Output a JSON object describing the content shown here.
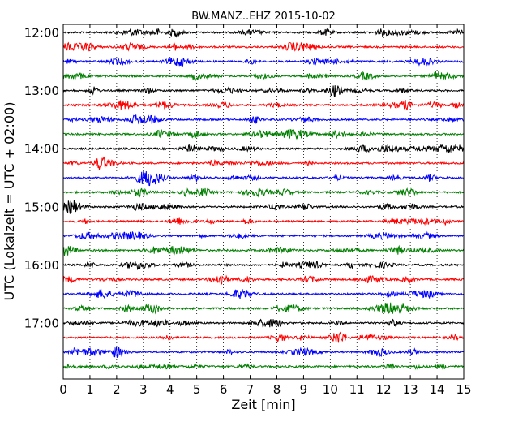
{
  "chart_data": {
    "type": "line",
    "title": "BW.MANZ..EHZ 2015-10-02",
    "xlabel": "Zeit  [min]",
    "ylabel": "UTC (Lokalzeit = UTC + 02:00)",
    "xlim": [
      0,
      15
    ],
    "x_ticks": [
      "0",
      "1",
      "2",
      "3",
      "4",
      "5",
      "6",
      "7",
      "8",
      "9",
      "10",
      "11",
      "12",
      "13",
      "14",
      "15"
    ],
    "y_ticks": [
      "12:00",
      "13:00",
      "14:00",
      "15:00",
      "16:00",
      "17:00"
    ],
    "grid": "vertical dotted",
    "trace_interval_min": 15,
    "start_time": "12:00",
    "trace_colors": [
      "#000000",
      "#ff0000",
      "#0000ff",
      "#007f00"
    ],
    "series": [
      {
        "start": "12:00",
        "color": "#000000"
      },
      {
        "start": "12:15",
        "color": "#ff0000"
      },
      {
        "start": "12:30",
        "color": "#0000ff"
      },
      {
        "start": "12:45",
        "color": "#007f00"
      },
      {
        "start": "13:00",
        "color": "#000000"
      },
      {
        "start": "13:15",
        "color": "#ff0000"
      },
      {
        "start": "13:30",
        "color": "#0000ff"
      },
      {
        "start": "13:45",
        "color": "#007f00"
      },
      {
        "start": "14:00",
        "color": "#000000"
      },
      {
        "start": "14:15",
        "color": "#ff0000"
      },
      {
        "start": "14:30",
        "color": "#0000ff"
      },
      {
        "start": "14:45",
        "color": "#007f00"
      },
      {
        "start": "15:00",
        "color": "#000000"
      },
      {
        "start": "15:15",
        "color": "#ff0000"
      },
      {
        "start": "15:30",
        "color": "#0000ff"
      },
      {
        "start": "15:45",
        "color": "#007f00"
      },
      {
        "start": "16:00",
        "color": "#000000"
      },
      {
        "start": "16:15",
        "color": "#ff0000"
      },
      {
        "start": "16:30",
        "color": "#0000ff"
      },
      {
        "start": "16:45",
        "color": "#007f00"
      },
      {
        "start": "17:00",
        "color": "#000000"
      },
      {
        "start": "17:15",
        "color": "#ff0000"
      },
      {
        "start": "17:30",
        "color": "#0000ff"
      },
      {
        "start": "17:45",
        "color": "#007f00"
      }
    ]
  }
}
